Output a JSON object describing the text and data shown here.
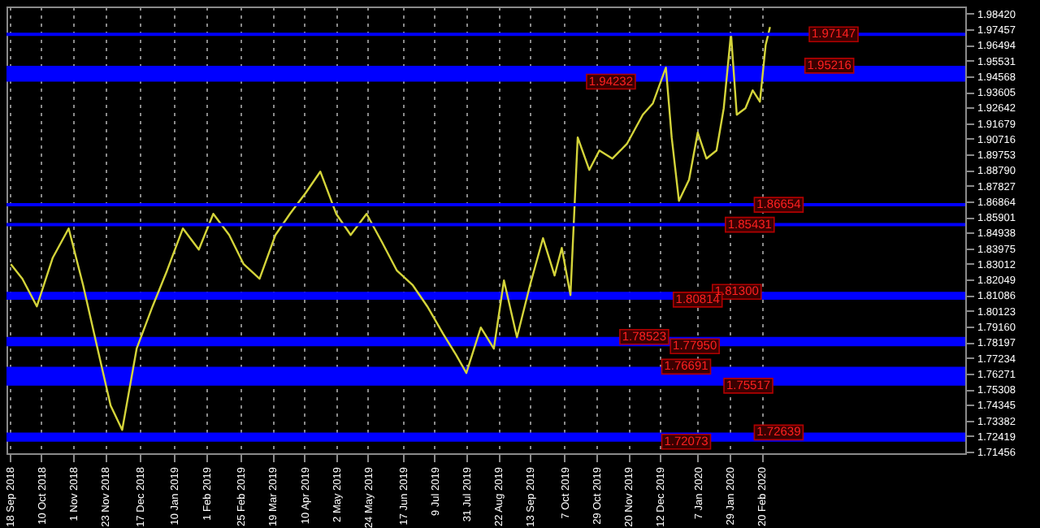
{
  "chart_data": {
    "type": "line",
    "x": [
      "2018-09-19",
      "2018-09-27",
      "2018-10-07",
      "2018-10-18",
      "2018-10-29",
      "2018-11-08",
      "2018-11-19",
      "2018-11-27",
      "2018-12-05",
      "2018-12-15",
      "2018-12-26",
      "2019-01-05",
      "2019-01-16",
      "2019-01-27",
      "2019-02-06",
      "2019-02-17",
      "2019-02-27",
      "2019-03-10",
      "2019-03-21",
      "2019-03-31",
      "2019-04-11",
      "2019-04-21",
      "2019-05-02",
      "2019-05-12",
      "2019-05-23",
      "2019-06-03",
      "2019-06-13",
      "2019-06-24",
      "2019-07-04",
      "2019-07-15",
      "2019-07-24",
      "2019-07-31",
      "2019-08-10",
      "2019-08-19",
      "2019-08-26",
      "2019-09-04",
      "2019-09-13",
      "2019-09-22",
      "2019-09-30",
      "2019-10-05",
      "2019-10-11",
      "2019-10-14",
      "2019-10-16",
      "2019-10-24",
      "2019-10-31",
      "2019-11-09",
      "2019-11-19",
      "2019-11-30",
      "2019-12-07",
      "2019-12-16",
      "2019-12-20",
      "2019-12-25",
      "2020-01-01",
      "2020-01-07",
      "2020-01-13",
      "2020-01-20",
      "2020-01-25",
      "2020-01-30",
      "2020-02-03",
      "2020-02-09",
      "2020-02-14",
      "2020-02-19",
      "2020-02-23",
      "2020-02-26"
    ],
    "series": [
      {
        "color": "#d4d43a",
        "values": [
          1.83,
          1.821,
          1.804,
          1.834,
          1.852,
          1.817,
          1.774,
          1.743,
          1.728,
          1.778,
          1.804,
          1.826,
          1.852,
          1.839,
          1.861,
          1.848,
          1.83,
          1.821,
          1.848,
          1.861,
          1.874,
          1.887,
          1.861,
          1.848,
          1.861,
          1.843,
          1.826,
          1.817,
          1.804,
          1.787,
          1.774,
          1.763,
          1.791,
          1.778,
          1.82,
          1.785,
          1.817,
          1.846,
          1.823,
          1.84,
          1.811,
          1.869,
          1.908,
          1.888,
          1.9,
          1.895,
          1.904,
          1.922,
          1.929,
          1.951,
          1.908,
          1.869,
          1.882,
          1.911,
          1.895,
          1.9,
          1.926,
          1.972,
          1.922,
          1.926,
          1.937,
          1.93,
          1.965,
          1.976
        ]
      }
    ],
    "xlim": [
      "2018-09-16",
      "2020-07-10"
    ],
    "ylim": [
      1.7136,
      1.9886
    ],
    "xticks": [
      {
        "value": "2018-09-18",
        "label": "18 Sep 2018"
      },
      {
        "value": "2018-10-10",
        "label": "10 Oct 2018"
      },
      {
        "value": "2018-11-01",
        "label": "1 Nov 2018"
      },
      {
        "value": "2018-11-23",
        "label": "23 Nov 2018"
      },
      {
        "value": "2018-12-17",
        "label": "17 Dec 2018"
      },
      {
        "value": "2019-01-10",
        "label": "10 Jan 2019"
      },
      {
        "value": "2019-02-01",
        "label": "1 Feb 2019"
      },
      {
        "value": "2019-02-25",
        "label": "25 Feb 2019"
      },
      {
        "value": "2019-03-19",
        "label": "19 Mar 2019"
      },
      {
        "value": "2019-04-10",
        "label": "10 Apr 2019"
      },
      {
        "value": "2019-05-02",
        "label": "2 May 2019"
      },
      {
        "value": "2019-05-24",
        "label": "24 May 2019"
      },
      {
        "value": "2019-06-17",
        "label": "17 Jun 2019"
      },
      {
        "value": "2019-07-09",
        "label": "9 Jul 2019"
      },
      {
        "value": "2019-07-31",
        "label": "31 Jul 2019"
      },
      {
        "value": "2019-08-22",
        "label": "22 Aug 2019"
      },
      {
        "value": "2019-09-13",
        "label": "13 Sep 2019"
      },
      {
        "value": "2019-10-07",
        "label": "7 Oct 2019"
      },
      {
        "value": "2019-10-29",
        "label": "29 Oct 2019"
      },
      {
        "value": "2019-11-20",
        "label": "20 Nov 2019"
      },
      {
        "value": "2019-12-12",
        "label": "12 Dec 2019"
      },
      {
        "value": "2020-01-07",
        "label": "7 Jan 2020"
      },
      {
        "value": "2020-01-29",
        "label": "29 Jan 2020"
      },
      {
        "value": "2020-02-20",
        "label": "20 Feb 2020"
      }
    ],
    "yticks": [
      {
        "value": 1.9842,
        "label": "1.98420"
      },
      {
        "value": 1.97457,
        "label": "1.97457"
      },
      {
        "value": 1.96494,
        "label": "1.96494"
      },
      {
        "value": 1.95531,
        "label": "1.95531"
      },
      {
        "value": 1.94568,
        "label": "1.94568"
      },
      {
        "value": 1.93605,
        "label": "1.93605"
      },
      {
        "value": 1.92642,
        "label": "1.92642"
      },
      {
        "value": 1.91679,
        "label": "1.91679"
      },
      {
        "value": 1.90716,
        "label": "1.90716"
      },
      {
        "value": 1.89753,
        "label": "1.89753"
      },
      {
        "value": 1.8879,
        "label": "1.88790"
      },
      {
        "value": 1.87827,
        "label": "1.87827"
      },
      {
        "value": 1.86864,
        "label": "1.86864"
      },
      {
        "value": 1.85901,
        "label": "1.85901"
      },
      {
        "value": 1.84938,
        "label": "1.84938"
      },
      {
        "value": 1.83975,
        "label": "1.83975"
      },
      {
        "value": 1.83012,
        "label": "1.83012"
      },
      {
        "value": 1.82049,
        "label": "1.82049"
      },
      {
        "value": 1.81086,
        "label": "1.81086"
      },
      {
        "value": 1.80123,
        "label": "1.80123"
      },
      {
        "value": 1.7916,
        "label": "1.79160"
      },
      {
        "value": 1.78197,
        "label": "1.78197"
      },
      {
        "value": 1.77234,
        "label": "1.77234"
      },
      {
        "value": 1.76271,
        "label": "1.76271"
      },
      {
        "value": 1.75308,
        "label": "1.75308"
      },
      {
        "value": 1.74345,
        "label": "1.74345"
      },
      {
        "value": 1.73382,
        "label": "1.73382"
      },
      {
        "value": 1.72419,
        "label": "1.72419"
      },
      {
        "value": 1.71456,
        "label": "1.71456"
      }
    ],
    "grid": "x",
    "bands": [
      {
        "axis": "y",
        "from": 1.94232,
        "to": 1.95216,
        "color": "#0000ff"
      },
      {
        "axis": "y",
        "from": 1.80814,
        "to": 1.813,
        "color": "#0000ff"
      },
      {
        "axis": "y",
        "from": 1.7795,
        "to": 1.78523,
        "color": "#0000ff"
      },
      {
        "axis": "y",
        "from": 1.75517,
        "to": 1.76691,
        "color": "#0000ff"
      },
      {
        "axis": "y",
        "from": 1.72073,
        "to": 1.72639,
        "color": "#0000ff"
      }
    ],
    "ref_lines": [
      {
        "axis": "y",
        "value": 1.97147,
        "color": "#0000ff"
      },
      {
        "axis": "y",
        "value": 1.86654,
        "color": "#0000ff"
      },
      {
        "axis": "y",
        "value": 1.85431,
        "color": "#0000ff"
      }
    ],
    "annotations": [
      {
        "text": "1.97147",
        "x": "2020-04-10",
        "y": 1.97147
      },
      {
        "text": "1.95216",
        "x": "2020-04-07",
        "y": 1.95216
      },
      {
        "text": "1.94232",
        "x": "2019-11-08",
        "y": 1.94232
      },
      {
        "text": "1.86654",
        "x": "2020-03-03",
        "y": 1.86654
      },
      {
        "text": "1.85431",
        "x": "2020-02-12",
        "y": 1.85431
      },
      {
        "text": "1.81300",
        "x": "2020-02-03",
        "y": 1.813
      },
      {
        "text": "1.80814",
        "x": "2020-01-07",
        "y": 1.80814
      },
      {
        "text": "1.78523",
        "x": "2019-12-01",
        "y": 1.78523
      },
      {
        "text": "1.77950",
        "x": "2020-01-05",
        "y": 1.7795
      },
      {
        "text": "1.76691",
        "x": "2019-12-30",
        "y": 1.76691
      },
      {
        "text": "1.75517",
        "x": "2020-02-11",
        "y": 1.75517
      },
      {
        "text": "1.72639",
        "x": "2020-03-03",
        "y": 1.72639
      },
      {
        "text": "1.72073",
        "x": "2019-12-30",
        "y": 1.72073
      }
    ]
  }
}
